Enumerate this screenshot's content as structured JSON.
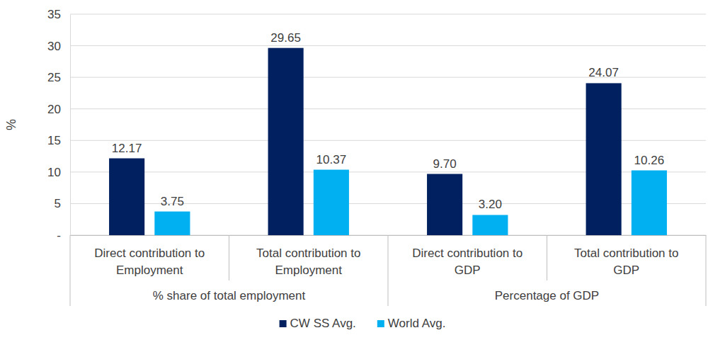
{
  "chart_data": {
    "type": "bar",
    "y_label": "%",
    "categories": [
      "Direct contribution to Employment",
      "Total contribution to Employment",
      "Direct contribution to GDP",
      "Total contribution to GDP"
    ],
    "groups": [
      {
        "label": "% share of total employment",
        "span": 2
      },
      {
        "label": "Percentage of GDP",
        "span": 2
      }
    ],
    "series": [
      {
        "name": "CW SS Avg.",
        "color": "#002060",
        "values": [
          12.17,
          29.65,
          9.7,
          24.07
        ],
        "value_labels": [
          "12.17",
          "29.65",
          "9.70",
          "24.07"
        ]
      },
      {
        "name": "World Avg.",
        "color": "#00b0f0",
        "values": [
          3.75,
          10.37,
          3.2,
          10.26
        ],
        "value_labels": [
          "3.75",
          "10.37",
          "3.20",
          "10.26"
        ]
      }
    ],
    "ylim": [
      0,
      35
    ],
    "yticks": [
      {
        "value": 0,
        "label": "-"
      },
      5,
      10,
      15,
      20,
      25,
      30,
      35
    ],
    "grid": true,
    "data_labels": true,
    "legend": "bottom"
  }
}
